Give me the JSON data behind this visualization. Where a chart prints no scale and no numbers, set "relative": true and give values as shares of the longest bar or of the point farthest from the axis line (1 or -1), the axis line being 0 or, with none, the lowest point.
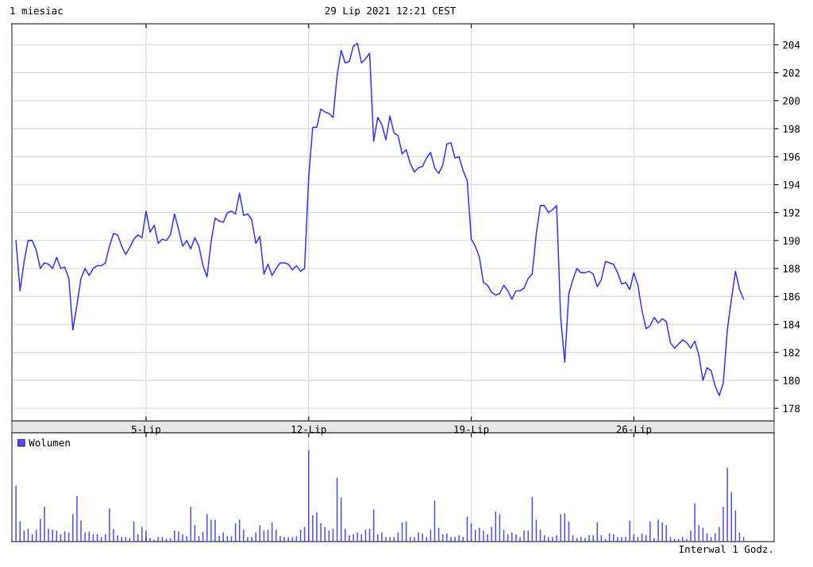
{
  "chart_data": [
    {
      "type": "line",
      "title": "1 miesiac",
      "subtitle": "29 Lip 2021 12:21 CEST",
      "categories": [
        null,
        null,
        null,
        null,
        null,
        null,
        null,
        null,
        null,
        null,
        null,
        null,
        null,
        null,
        null,
        null,
        null,
        null,
        null,
        null,
        null,
        null,
        null,
        null,
        null,
        null,
        null,
        null,
        null,
        null,
        null,
        null,
        "5-Lip",
        null,
        null,
        null,
        null,
        null,
        null,
        null,
        null,
        null,
        null,
        null,
        null,
        null,
        null,
        null,
        null,
        null,
        null,
        null,
        null,
        null,
        null,
        null,
        null,
        null,
        null,
        null,
        null,
        null,
        null,
        null,
        null,
        null,
        null,
        null,
        null,
        null,
        null,
        null,
        "12-Lip",
        null,
        null,
        null,
        null,
        null,
        null,
        null,
        null,
        null,
        null,
        null,
        null,
        null,
        null,
        null,
        null,
        null,
        null,
        null,
        null,
        null,
        null,
        null,
        null,
        null,
        null,
        null,
        null,
        null,
        null,
        null,
        null,
        null,
        null,
        null,
        null,
        null,
        null,
        null,
        "19-Lip",
        null,
        null,
        null,
        null,
        null,
        null,
        null,
        null,
        null,
        null,
        null,
        null,
        null,
        null,
        null,
        null,
        null,
        null,
        null,
        null,
        null,
        null,
        null,
        null,
        null,
        null,
        null,
        null,
        null,
        null,
        null,
        null,
        null,
        null,
        null,
        null,
        null,
        null,
        null,
        "26-Lip",
        null,
        null,
        null,
        null,
        null,
        null,
        null,
        null,
        null,
        null,
        null,
        null,
        null,
        null,
        null,
        null,
        null,
        null,
        null,
        null,
        null,
        null,
        null,
        null,
        null,
        null,
        null
      ],
      "series": [
        {
          "color": "#3333ff",
          "values": [
            190,
            186.4,
            188.5,
            190,
            190,
            189.3,
            188,
            188.4,
            188.3,
            188,
            188.8,
            188,
            188.1,
            187.3,
            183.6,
            185.4,
            187.3,
            188,
            187.5,
            188,
            188.2,
            188.2,
            188.4,
            189.6,
            190.5,
            190.4,
            189.6,
            189,
            189.5,
            190.1,
            190.4,
            190.2,
            192.1,
            190.6,
            191.1,
            189.8,
            190.1,
            190,
            190.4,
            191.9,
            190.8,
            189.6,
            190,
            189.4,
            190.2,
            189.6,
            188.2,
            187.4,
            189.9,
            191.6,
            191.4,
            191.3,
            192,
            192.1,
            191.9,
            193.4,
            191.8,
            191.9,
            191.5,
            189.8,
            190.3,
            187.6,
            188.3,
            187.5,
            188,
            188.4,
            188.4,
            188.3,
            187.9,
            188.2,
            187.8,
            188,
            194.5,
            198.1,
            198.1,
            199.4,
            199.2,
            199.1,
            198.8,
            201.8,
            203.6,
            202.7,
            202.8,
            203.9,
            204.1,
            202.7,
            203,
            203.4,
            197.1,
            198.8,
            198.3,
            197.2,
            198.9,
            197.7,
            197.5,
            196.2,
            196.5,
            195.5,
            194.9,
            195.2,
            195.3,
            195.9,
            196.3,
            195.2,
            194.8,
            195.4,
            196.9,
            197,
            195.9,
            196,
            195,
            194.3,
            190.1,
            189.6,
            188.8,
            187,
            186.8,
            186.3,
            186.1,
            186.2,
            186.8,
            186.4,
            185.8,
            186.4,
            186.4,
            186.6,
            187.3,
            187.6,
            190.5,
            192.5,
            192.5,
            192,
            192.2,
            192.5,
            184.5,
            181.3,
            186.2,
            187.2,
            188,
            187.7,
            187.7,
            187.8,
            187.6,
            186.7,
            187.2,
            188.5,
            188.4,
            188.3,
            187.7,
            186.9,
            187,
            186.5,
            187.7,
            186.8,
            185,
            183.7,
            183.9,
            184.5,
            184.1,
            184.4,
            184.2,
            182.7,
            182.3,
            182.6,
            182.9,
            182.7,
            182.3,
            182.8,
            181.8,
            180,
            180.9,
            180.7,
            179.6,
            178.9,
            179.8,
            183.6,
            185.8,
            187.8,
            186.5,
            185.8
          ]
        }
      ],
      "ylim": [
        177.1,
        205.5
      ],
      "yticks": [
        178,
        180,
        182,
        184,
        186,
        188,
        190,
        192,
        194,
        196,
        198,
        200,
        202,
        204
      ],
      "grid": true
    },
    {
      "type": "bar",
      "relative": true,
      "legend": "top left",
      "grid": "x",
      "tick_labels": false,
      "annotations": [
        "Interwal 1 Godz."
      ],
      "categories": [
        null,
        null,
        null,
        null,
        null,
        null,
        null,
        null,
        null,
        null,
        null,
        null,
        null,
        null,
        null,
        null,
        null,
        null,
        null,
        null,
        null,
        null,
        null,
        null,
        null,
        null,
        null,
        null,
        null,
        null,
        null,
        null,
        null,
        null,
        null,
        null,
        null,
        null,
        null,
        null,
        null,
        null,
        null,
        null,
        null,
        null,
        null,
        null,
        null,
        null,
        null,
        null,
        null,
        null,
        null,
        null,
        null,
        null,
        null,
        null,
        null,
        null,
        null,
        null,
        null,
        null,
        null,
        null,
        null,
        null,
        null,
        null,
        null,
        null,
        null,
        null,
        null,
        null,
        null,
        null,
        null,
        null,
        null,
        null,
        null,
        null,
        null,
        null,
        null,
        null,
        null,
        null,
        null,
        null,
        null,
        null,
        null,
        null,
        null,
        null,
        null,
        null,
        null,
        null,
        null,
        null,
        null,
        null,
        null,
        null,
        null,
        null,
        null,
        null,
        null,
        null,
        null,
        null,
        null,
        null,
        null,
        null,
        null,
        null,
        null,
        null,
        null,
        null,
        null,
        null,
        null,
        null,
        null,
        null,
        null,
        null,
        null,
        null,
        null,
        null,
        null,
        null,
        null,
        null,
        null,
        null,
        null,
        null,
        null,
        null,
        null,
        null,
        null,
        null,
        null,
        null,
        null,
        null,
        null,
        null,
        null,
        null,
        null,
        null,
        null,
        null,
        null,
        null,
        null,
        null,
        null,
        null,
        null,
        null,
        null,
        null,
        null,
        null,
        null,
        null
      ],
      "series": [
        {
          "name": "Wolumen",
          "color": "#4d4dff",
          "values": [
            0.61,
            0.22,
            0.12,
            0.14,
            0.08,
            0.13,
            0.25,
            0.38,
            0.14,
            0.13,
            0.12,
            0.08,
            0.11,
            0.1,
            0.3,
            0.5,
            0.23,
            0.1,
            0.11,
            0.08,
            0.08,
            0.05,
            0.08,
            0.36,
            0.14,
            0.07,
            0.05,
            0.05,
            0.04,
            0.22,
            0.08,
            0.16,
            0.12,
            0.04,
            0.02,
            0.05,
            0.05,
            0.03,
            0.04,
            0.12,
            0.11,
            0.08,
            0.06,
            0.38,
            0.18,
            0.06,
            0.11,
            0.3,
            0.24,
            0.24,
            0.06,
            0.1,
            0.06,
            0.06,
            0.2,
            0.24,
            0.13,
            0.05,
            0.05,
            0.1,
            0.18,
            0.12,
            0.13,
            0.21,
            0.13,
            0.06,
            0.05,
            0.05,
            0.05,
            0.06,
            0.13,
            0.16,
            1,
            0.29,
            0.32,
            0.2,
            0.16,
            0.12,
            0.14,
            0.7,
            0.48,
            0.14,
            0.07,
            0.08,
            0.1,
            0.08,
            0.13,
            0.14,
            0.35,
            0.08,
            0.1,
            0.05,
            0.05,
            0.05,
            0.1,
            0.21,
            0.22,
            0.05,
            0.05,
            0.1,
            0.09,
            0.05,
            0.13,
            0.45,
            0.15,
            0.08,
            0.09,
            0.05,
            0.05,
            0.07,
            0.05,
            0.27,
            0.2,
            0.13,
            0.15,
            0.12,
            0.08,
            0.16,
            0.33,
            0.3,
            0.13,
            0.08,
            0.1,
            0.08,
            0.05,
            0.12,
            0.12,
            0.49,
            0.24,
            0.13,
            0.07,
            0.05,
            0.05,
            0.07,
            0.3,
            0.31,
            0.22,
            0.07,
            0.04,
            0.05,
            0.04,
            0.07,
            0.07,
            0.21,
            0.07,
            0.03,
            0.09,
            0.08,
            0.05,
            0.05,
            0.05,
            0.23,
            0.08,
            0.05,
            0.09,
            0.07,
            0.22,
            0.04,
            0.24,
            0.21,
            0.18,
            0.05,
            0.03,
            0.03,
            0.05,
            0.03,
            0.12,
            0.42,
            0.18,
            0.15,
            0.09,
            0.05,
            0.09,
            0.16,
            0.38,
            0.81,
            0.54,
            0.34,
            0.1,
            0.05
          ]
        }
      ]
    }
  ]
}
